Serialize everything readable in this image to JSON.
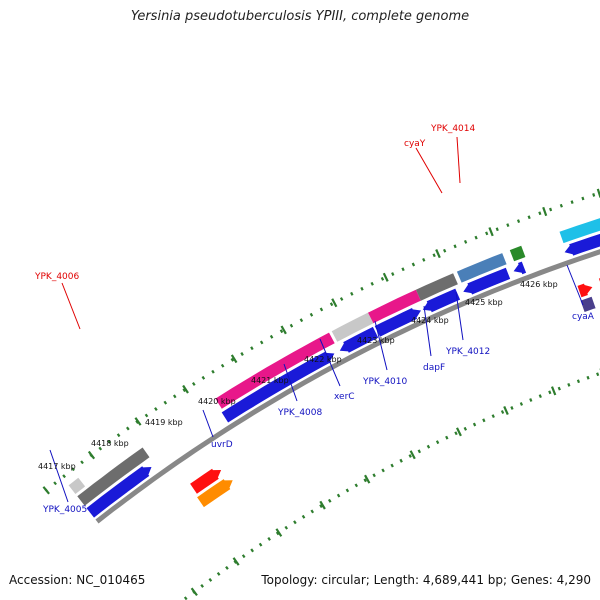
{
  "title": "Yersinia pseudotuberculosis YPIII, complete genome",
  "accession_text": "Accession: NC_010465",
  "topology_text": "Topology: circular; Length: 4,689,441 bp; Genes: 4,290",
  "colors": {
    "axis": "#888888",
    "tick": "#2e7d2e",
    "label_red": "#e00000",
    "label_blue": "#1010c0",
    "cds_blue": "#1a1ad8",
    "magenta": "#e8178a",
    "cyan": "#1ec0e8",
    "steel": "#4a7fb8",
    "grey": "#6d6d6d",
    "lightgrey": "#c8c8c8",
    "orange": "#ff8c00",
    "red": "#ff1010",
    "slate": "#4a3f8c",
    "green": "#2a8a2a"
  },
  "scale_labels": [
    "4417 kbp",
    "4418 kbp",
    "4419 kbp",
    "4420 kbp",
    "4421 kbp",
    "4422 kbp",
    "4423 kbp",
    "4424 kbp",
    "4425 kbp",
    "4426 kbp"
  ],
  "gene_labels": [
    {
      "text": "YPK_4006",
      "color": "red"
    },
    {
      "text": "cyaY",
      "color": "red"
    },
    {
      "text": "YPK_4014",
      "color": "red"
    },
    {
      "text": "YPK_4005",
      "color": "blue"
    },
    {
      "text": "uvrD",
      "color": "blue"
    },
    {
      "text": "YPK_4008",
      "color": "blue"
    },
    {
      "text": "xerC",
      "color": "blue"
    },
    {
      "text": "YPK_4010",
      "color": "blue"
    },
    {
      "text": "dapF",
      "color": "blue"
    },
    {
      "text": "YPK_4012",
      "color": "blue"
    },
    {
      "text": "cyaA",
      "color": "blue"
    }
  ]
}
